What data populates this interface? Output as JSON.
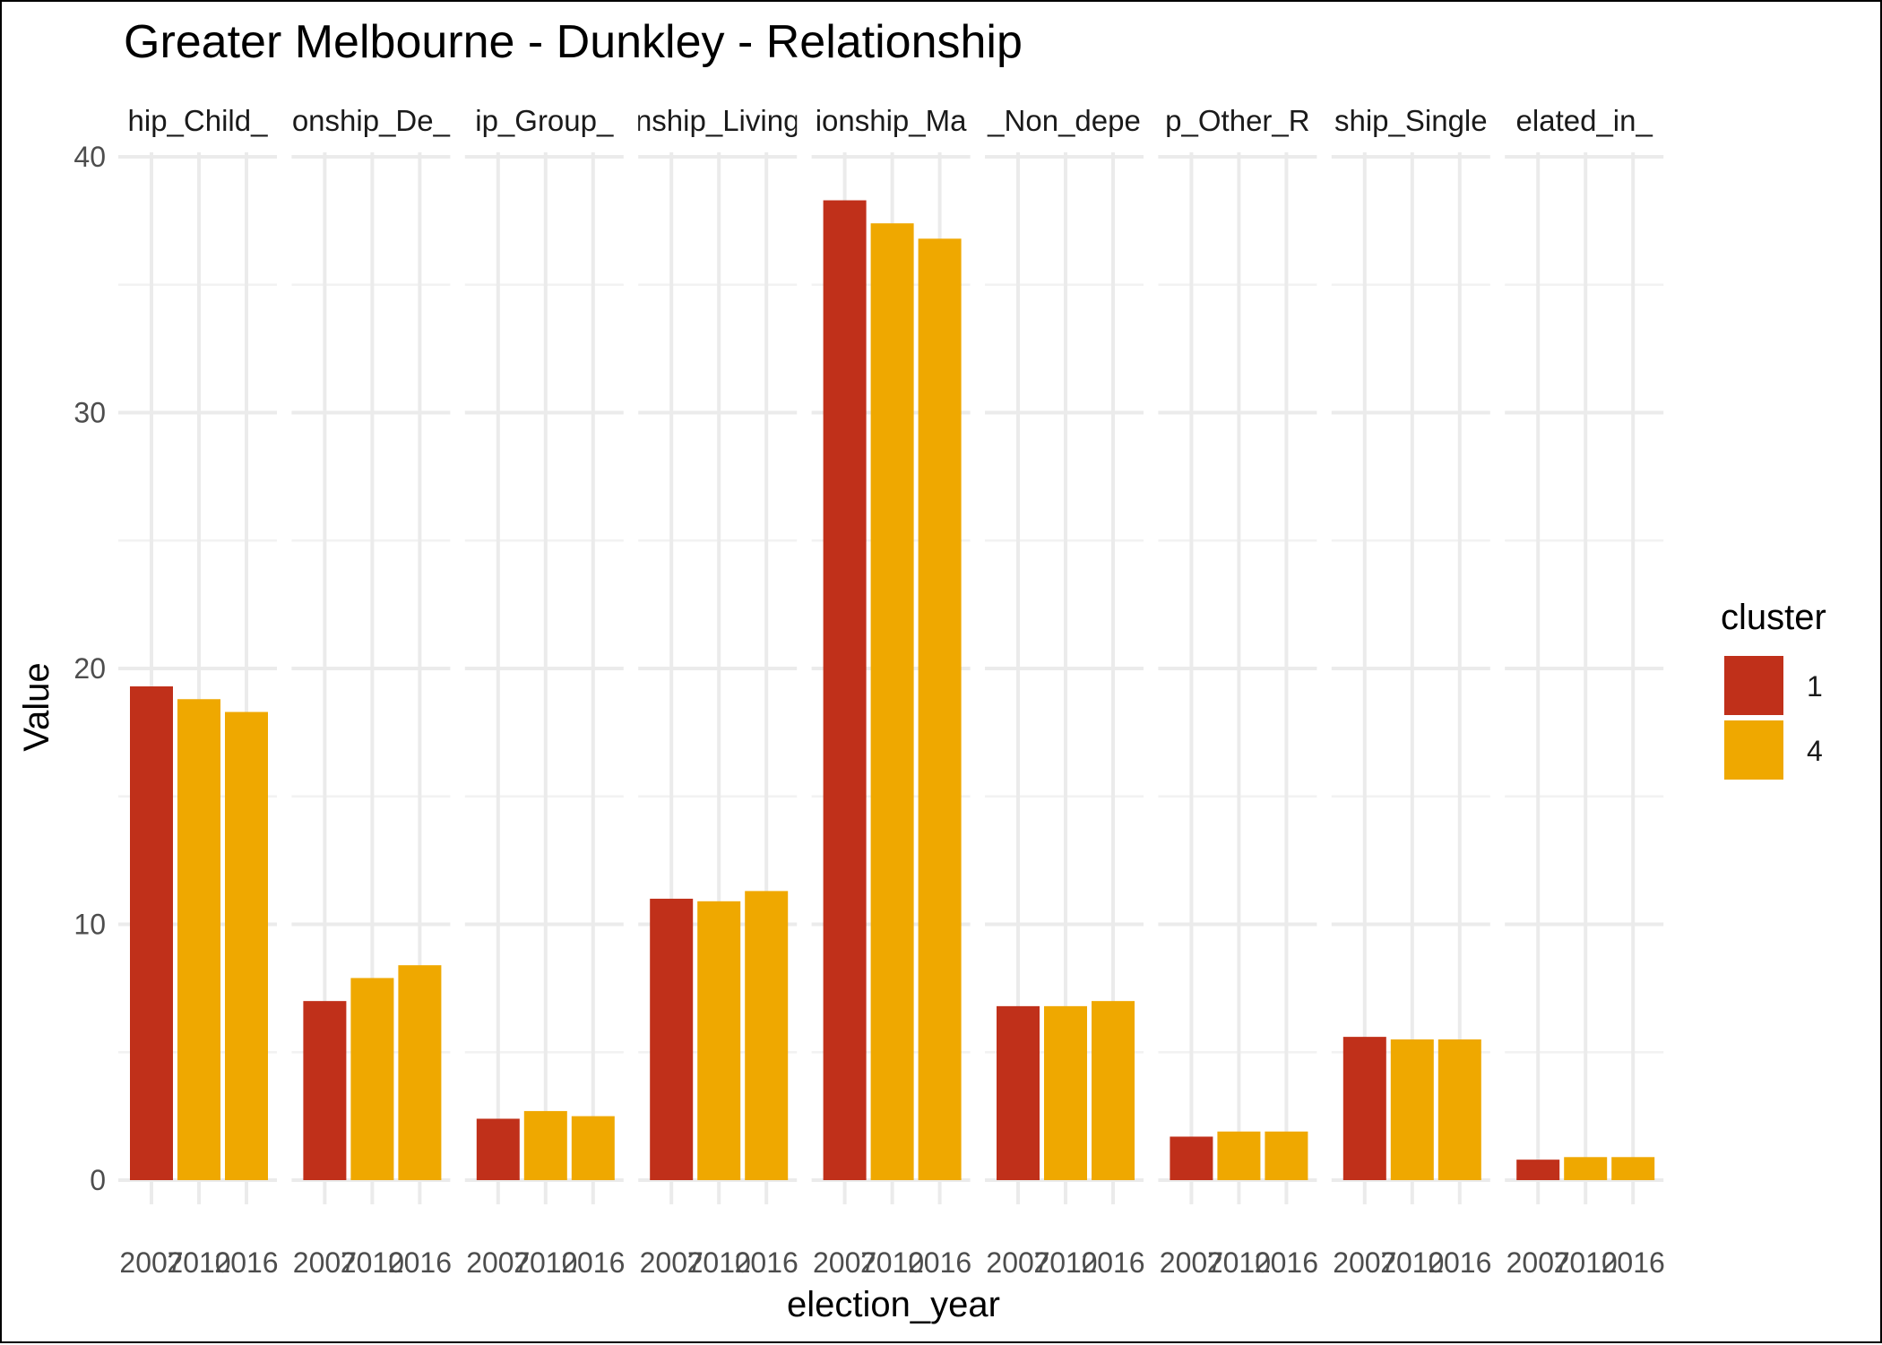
{
  "chart_data": {
    "type": "bar",
    "title": "Greater Melbourne - Dunkley - Relationship",
    "xlabel": "election_year",
    "ylabel": "Value",
    "ylim": [
      0,
      40
    ],
    "yticks": [
      0,
      10,
      20,
      30,
      40
    ],
    "grid": true,
    "legend": {
      "title": "cluster",
      "placement": "right",
      "entries": [
        {
          "label": "1",
          "color": "#C0301A"
        },
        {
          "label": "4",
          "color": "#EFA800"
        }
      ]
    },
    "facets": [
      {
        "strip_label": "hip_Child_",
        "bars": [
          {
            "x": "2007",
            "y": 19.3,
            "cluster": "1"
          },
          {
            "x": "2010",
            "y": 18.8,
            "cluster": "4"
          },
          {
            "x": "2016",
            "y": 18.3,
            "cluster": "4"
          }
        ]
      },
      {
        "strip_label": "onship_De_",
        "bars": [
          {
            "x": "2007",
            "y": 7.0,
            "cluster": "1"
          },
          {
            "x": "2010",
            "y": 7.9,
            "cluster": "4"
          },
          {
            "x": "2016",
            "y": 8.4,
            "cluster": "4"
          }
        ]
      },
      {
        "strip_label": "ip_Group_",
        "bars": [
          {
            "x": "2007",
            "y": 2.4,
            "cluster": "1"
          },
          {
            "x": "2010",
            "y": 2.7,
            "cluster": "4"
          },
          {
            "x": "2016",
            "y": 2.5,
            "cluster": "4"
          }
        ]
      },
      {
        "strip_label": "nship_Living",
        "bars": [
          {
            "x": "2007",
            "y": 11.0,
            "cluster": "1"
          },
          {
            "x": "2010",
            "y": 10.9,
            "cluster": "4"
          },
          {
            "x": "2016",
            "y": 11.3,
            "cluster": "4"
          }
        ]
      },
      {
        "strip_label": "ionship_Ma",
        "bars": [
          {
            "x": "2007",
            "y": 38.3,
            "cluster": "1"
          },
          {
            "x": "2010",
            "y": 37.4,
            "cluster": "4"
          },
          {
            "x": "2016",
            "y": 36.8,
            "cluster": "4"
          }
        ]
      },
      {
        "strip_label": "_Non_depe",
        "bars": [
          {
            "x": "2007",
            "y": 6.8,
            "cluster": "1"
          },
          {
            "x": "2010",
            "y": 6.8,
            "cluster": "4"
          },
          {
            "x": "2016",
            "y": 7.0,
            "cluster": "4"
          }
        ]
      },
      {
        "strip_label": "p_Other_R",
        "bars": [
          {
            "x": "2007",
            "y": 1.7,
            "cluster": "1"
          },
          {
            "x": "2010",
            "y": 1.9,
            "cluster": "4"
          },
          {
            "x": "2016",
            "y": 1.9,
            "cluster": "4"
          }
        ]
      },
      {
        "strip_label": "ship_Single",
        "bars": [
          {
            "x": "2007",
            "y": 5.6,
            "cluster": "1"
          },
          {
            "x": "2010",
            "y": 5.5,
            "cluster": "4"
          },
          {
            "x": "2016",
            "y": 5.5,
            "cluster": "4"
          }
        ]
      },
      {
        "strip_label": "elated_in_",
        "bars": [
          {
            "x": "2007",
            "y": 0.8,
            "cluster": "1"
          },
          {
            "x": "2010",
            "y": 0.9,
            "cluster": "4"
          },
          {
            "x": "2016",
            "y": 0.9,
            "cluster": "4"
          }
        ]
      }
    ]
  }
}
